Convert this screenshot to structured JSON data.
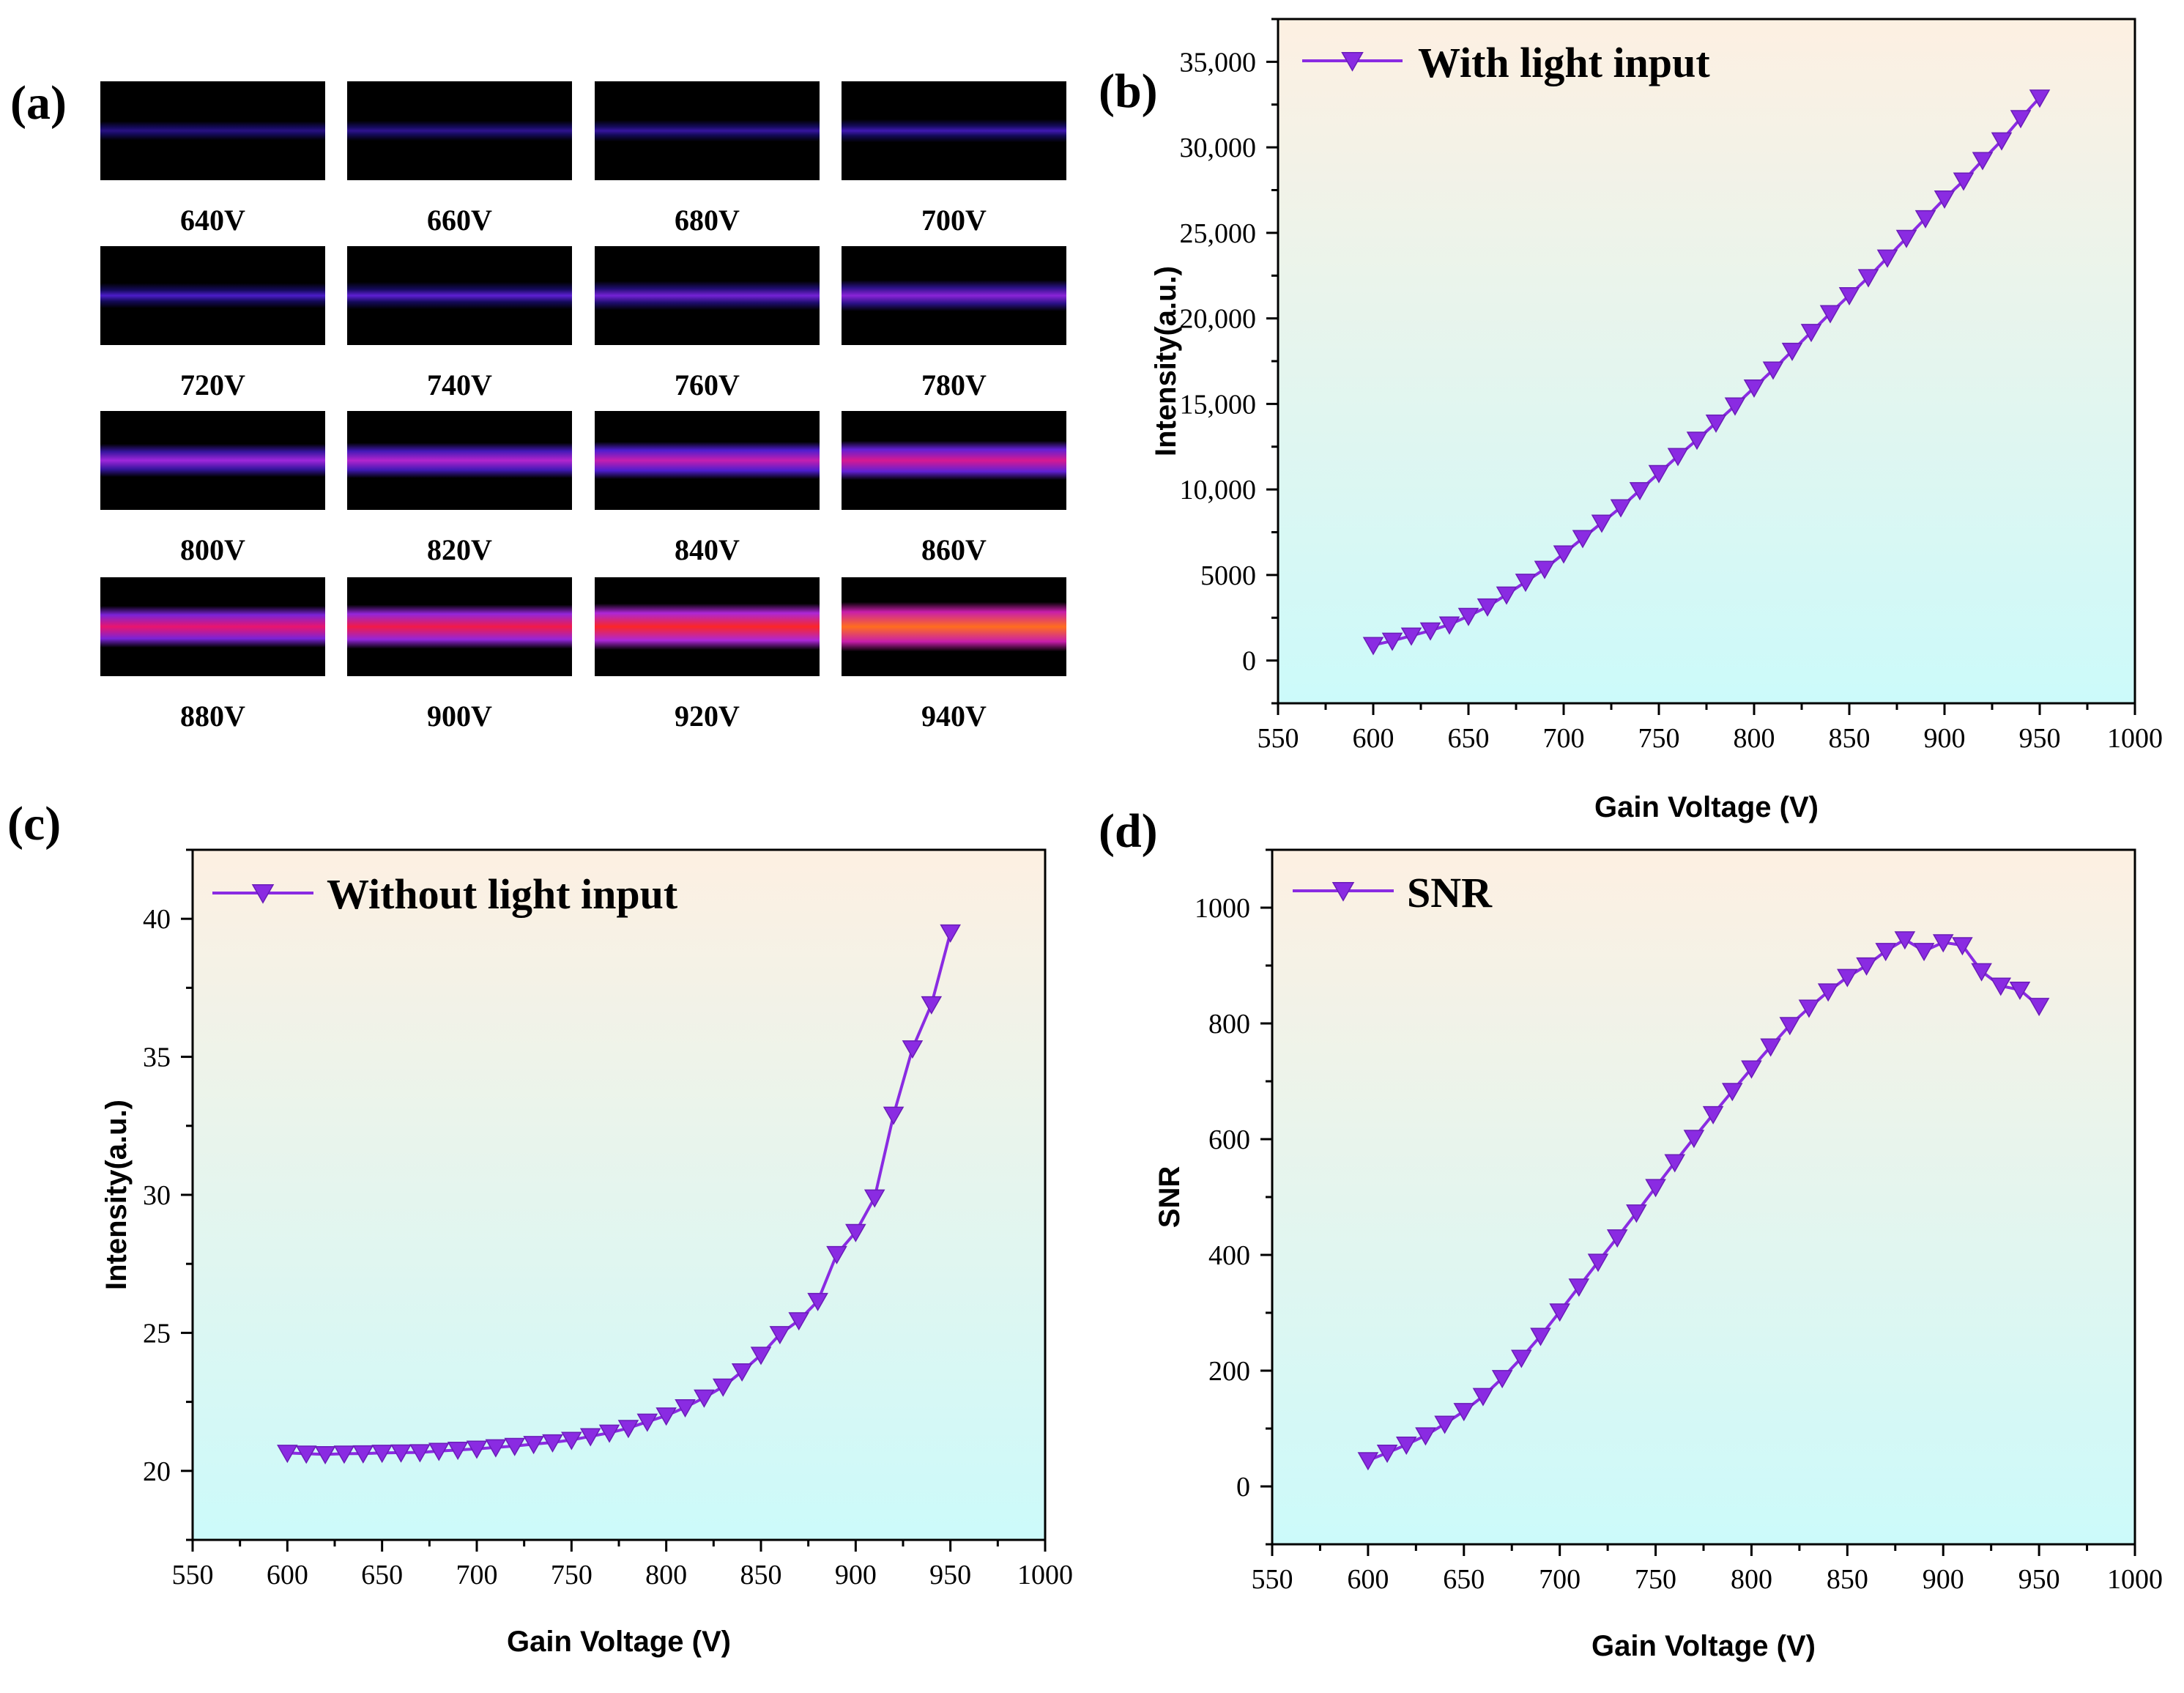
{
  "colors": {
    "series": "#8a2be2",
    "bg_top": "#fdf0e2",
    "bg_bottom": "#ccfafa"
  },
  "panel_a": {
    "tag": "(a)",
    "images": [
      {
        "label": "640V",
        "intensity": 0.1
      },
      {
        "label": "660V",
        "intensity": 0.13
      },
      {
        "label": "680V",
        "intensity": 0.17
      },
      {
        "label": "700V",
        "intensity": 0.22
      },
      {
        "label": "720V",
        "intensity": 0.28
      },
      {
        "label": "740V",
        "intensity": 0.34
      },
      {
        "label": "760V",
        "intensity": 0.4
      },
      {
        "label": "780V",
        "intensity": 0.46
      },
      {
        "label": "800V",
        "intensity": 0.52
      },
      {
        "label": "820V",
        "intensity": 0.58
      },
      {
        "label": "840V",
        "intensity": 0.64
      },
      {
        "label": "860V",
        "intensity": 0.7
      },
      {
        "label": "880V",
        "intensity": 0.77
      },
      {
        "label": "900V",
        "intensity": 0.84
      },
      {
        "label": "920V",
        "intensity": 0.91
      },
      {
        "label": "940V",
        "intensity": 1.0
      }
    ]
  },
  "chart_data": [
    {
      "id": "b",
      "tag": "(b)",
      "type": "line",
      "xlabel": "Gain Voltage  (V)",
      "ylabel": "Intensity(a.u.)",
      "legend": "With light input",
      "xlim": [
        550,
        1000
      ],
      "ylim": [
        -2500,
        37500
      ],
      "xticks": [
        550,
        600,
        650,
        700,
        750,
        800,
        850,
        900,
        950,
        1000
      ],
      "yticks": [
        0,
        5000,
        10000,
        15000,
        20000,
        25000,
        30000,
        35000
      ],
      "ytick_labels": [
        "0",
        "5000",
        "10,000",
        "15,000",
        "20,000",
        "25,000",
        "30,000",
        "35,000"
      ],
      "x": [
        600,
        610,
        620,
        630,
        640,
        650,
        660,
        670,
        680,
        690,
        700,
        710,
        720,
        730,
        740,
        750,
        760,
        770,
        780,
        790,
        800,
        810,
        820,
        830,
        840,
        850,
        860,
        870,
        880,
        890,
        900,
        910,
        920,
        930,
        940,
        950
      ],
      "y": [
        900,
        1150,
        1450,
        1750,
        2100,
        2600,
        3150,
        3850,
        4600,
        5350,
        6250,
        7150,
        8050,
        8950,
        9950,
        10950,
        11950,
        12900,
        13900,
        14900,
        15950,
        17000,
        18100,
        19200,
        20300,
        21350,
        22400,
        23550,
        24700,
        25850,
        27000,
        28050,
        29250,
        30400,
        31700,
        32900
      ]
    },
    {
      "id": "c",
      "tag": "(c)",
      "type": "line",
      "xlabel": "Gain Voltage  (V)",
      "ylabel": "Intensity(a.u.)",
      "legend": "Without light input",
      "xlim": [
        550,
        1000
      ],
      "ylim": [
        17.5,
        42.5
      ],
      "xticks": [
        550,
        600,
        650,
        700,
        750,
        800,
        850,
        900,
        950,
        1000
      ],
      "yticks": [
        20,
        25,
        30,
        35,
        40
      ],
      "ytick_labels": [
        "20",
        "25",
        "30",
        "35",
        "40"
      ],
      "x": [
        600,
        610,
        620,
        630,
        640,
        650,
        660,
        670,
        680,
        690,
        700,
        710,
        720,
        730,
        740,
        750,
        760,
        770,
        780,
        790,
        800,
        810,
        820,
        830,
        840,
        850,
        860,
        870,
        880,
        890,
        900,
        910,
        920,
        930,
        940,
        950
      ],
      "y": [
        20.65,
        20.62,
        20.6,
        20.62,
        20.63,
        20.65,
        20.66,
        20.67,
        20.72,
        20.76,
        20.8,
        20.85,
        20.9,
        20.97,
        21.03,
        21.12,
        21.25,
        21.38,
        21.55,
        21.78,
        22.0,
        22.3,
        22.65,
        23.05,
        23.6,
        24.2,
        24.95,
        25.45,
        26.15,
        27.85,
        28.65,
        29.9,
        32.9,
        35.3,
        36.9,
        39.5
      ]
    },
    {
      "id": "d",
      "tag": "(d)",
      "type": "line",
      "xlabel": "Gain Voltage  (V)",
      "ylabel": "SNR",
      "legend": "SNR",
      "xlim": [
        550,
        1000
      ],
      "ylim": [
        -100,
        1100
      ],
      "xticks": [
        550,
        600,
        650,
        700,
        750,
        800,
        850,
        900,
        950,
        1000
      ],
      "yticks": [
        0,
        200,
        400,
        600,
        800,
        1000
      ],
      "ytick_labels": [
        "0",
        "200",
        "400",
        "600",
        "800",
        "1000"
      ],
      "x": [
        600,
        610,
        620,
        630,
        640,
        650,
        660,
        670,
        680,
        690,
        700,
        710,
        720,
        730,
        740,
        750,
        760,
        770,
        780,
        790,
        800,
        810,
        820,
        830,
        840,
        850,
        860,
        870,
        880,
        890,
        900,
        910,
        920,
        930,
        940,
        950
      ],
      "y": [
        45,
        58,
        72,
        88,
        108,
        130,
        156,
        187,
        222,
        260,
        302,
        345,
        388,
        430,
        473,
        517,
        560,
        602,
        643,
        683,
        722,
        760,
        797,
        827,
        855,
        880,
        900,
        925,
        945,
        925,
        940,
        935,
        890,
        865,
        858,
        830
      ]
    }
  ]
}
